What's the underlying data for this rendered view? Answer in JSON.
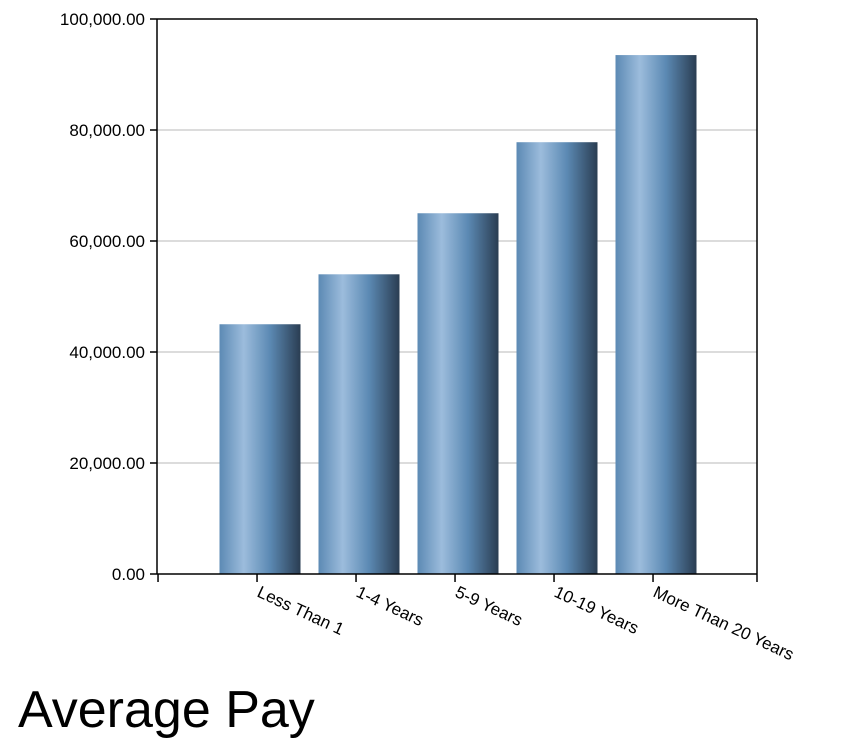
{
  "chart_data": {
    "type": "bar",
    "title": "Average Pay",
    "categories": [
      "Less Than 1",
      "1-4 Years",
      "5-9 Years",
      "10-19 Years",
      "More Than 20 Years"
    ],
    "values": [
      45000,
      54000,
      65000,
      77800,
      93500
    ],
    "ylim": [
      0,
      100000
    ],
    "yticks": [
      0,
      20000,
      40000,
      60000,
      80000,
      100000
    ],
    "ytick_labels": [
      "0.00",
      "20,000.00",
      "40,000.00",
      "60,000.00",
      "80,000.00",
      "100,000.00"
    ],
    "xlabel": "",
    "ylabel": "",
    "grid": true,
    "legend": "none",
    "colors": {
      "bar_light": "#9cbcdc",
      "bar_mid": "#5c8ab4",
      "bar_dark": "#2a3d52",
      "grid": "#c8c8c8",
      "axis": "#000000"
    }
  }
}
